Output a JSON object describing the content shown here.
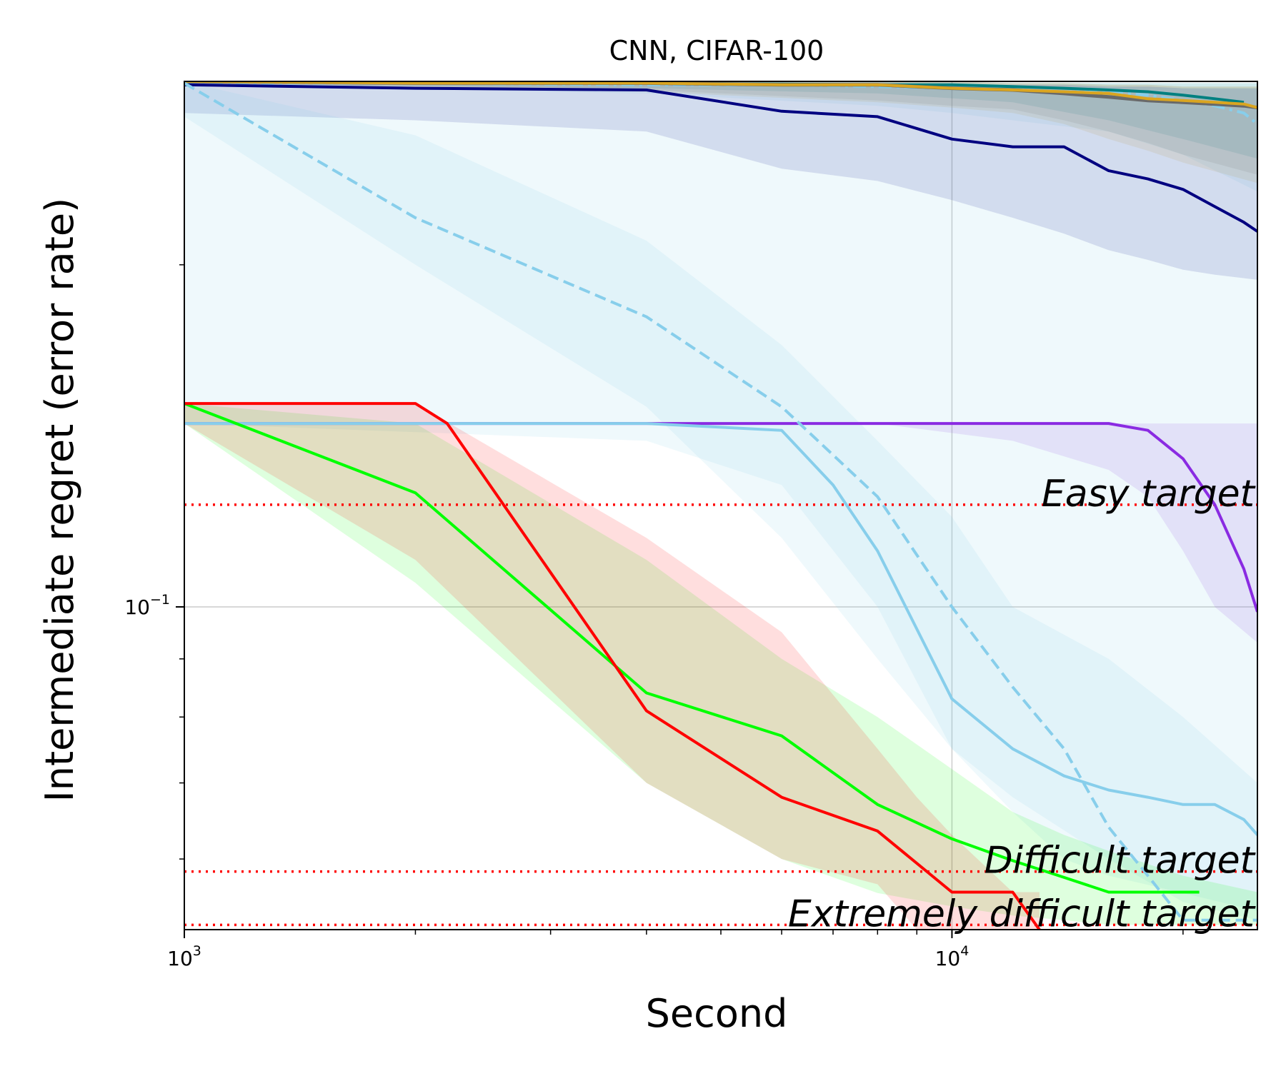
{
  "chart_data": {
    "type": "line",
    "title": "CNN, CIFAR-100",
    "xlabel": "Second",
    "ylabel": "Intermediate regret (error rate)",
    "xscale": "log",
    "yscale": "log",
    "xlim": [
      1000,
      25000
    ],
    "ylim": [
      0.052,
      0.29
    ],
    "xticks": [
      {
        "value": 1000,
        "base": "10",
        "exp": "3"
      },
      {
        "value": 10000,
        "base": "10",
        "exp": "4"
      }
    ],
    "yticks": [
      {
        "value": 0.1,
        "base": "10",
        "exp": "−1"
      }
    ],
    "grid": true,
    "targets": [
      {
        "label": "Easy target",
        "value": 0.123,
        "color": "#ff0000"
      },
      {
        "label": "Difficult target",
        "value": 0.0585,
        "color": "#ff0000"
      },
      {
        "label": "Extremely difficult target",
        "value": 0.0525,
        "color": "#ff0000"
      }
    ],
    "series": [
      {
        "name": "light-blue-dashdot",
        "color": "#87ceeb",
        "style": "dashdot",
        "width": 4,
        "x": [
          1000,
          2000,
          4000,
          6000,
          8000,
          10000,
          12000,
          14000,
          16000,
          18000,
          20000,
          22000,
          24000,
          25000
        ],
        "y": [
          0.289,
          0.289,
          0.288,
          0.288,
          0.287,
          0.286,
          0.285,
          0.284,
          0.284,
          0.282,
          0.279,
          0.276,
          0.272,
          0.266
        ],
        "band": {
          "x": [
            1000,
            4000,
            8000,
            10000,
            12000,
            16000,
            20000,
            25000
          ],
          "lo": [
            0.288,
            0.283,
            0.276,
            0.272,
            0.268,
            0.262,
            0.25,
            0.232
          ],
          "hi": [
            0.29,
            0.29,
            0.29,
            0.29,
            0.289,
            0.289,
            0.289,
            0.289
          ]
        }
      },
      {
        "name": "teal",
        "color": "#008080",
        "style": "solid",
        "width": 4,
        "x": [
          1000,
          4000,
          8000,
          10000,
          12000,
          14000,
          16000,
          18000,
          20000,
          22000,
          24000
        ],
        "y": [
          0.29,
          0.289,
          0.288,
          0.288,
          0.287,
          0.286,
          0.285,
          0.284,
          0.282,
          0.28,
          0.278
        ],
        "band": {
          "x": [
            1000,
            4000,
            8000,
            12000,
            16000,
            20000,
            25000
          ],
          "lo": [
            0.289,
            0.286,
            0.283,
            0.278,
            0.268,
            0.258,
            0.248
          ],
          "hi": [
            0.29,
            0.29,
            0.29,
            0.289,
            0.289,
            0.289,
            0.289
          ]
        }
      },
      {
        "name": "gray",
        "color": "#696969",
        "style": "solid",
        "width": 5,
        "x": [
          1000,
          2000,
          4000,
          6000,
          8000,
          10000,
          12000,
          14000,
          16000,
          18000,
          20000,
          22000,
          24000,
          25000
        ],
        "y": [
          0.29,
          0.289,
          0.289,
          0.288,
          0.288,
          0.286,
          0.285,
          0.283,
          0.281,
          0.279,
          0.278,
          0.277,
          0.276,
          0.275
        ],
        "band": {
          "x": [
            1000,
            4000,
            8000,
            10000,
            12000,
            14000,
            16000,
            18000,
            20000,
            25000
          ],
          "lo": [
            0.289,
            0.285,
            0.279,
            0.276,
            0.274,
            0.268,
            0.262,
            0.256,
            0.25,
            0.24
          ],
          "hi": [
            0.29,
            0.29,
            0.29,
            0.29,
            0.289,
            0.289,
            0.288,
            0.288,
            0.287,
            0.287
          ]
        }
      },
      {
        "name": "goldenrod",
        "color": "#daa520",
        "style": "solid",
        "width": 4,
        "x": [
          1000,
          2000,
          4000,
          6000,
          8000,
          10000,
          12000,
          14000,
          16000,
          18000,
          20000,
          22000,
          24000,
          25000
        ],
        "y": [
          0.29,
          0.289,
          0.289,
          0.288,
          0.288,
          0.286,
          0.285,
          0.284,
          0.283,
          0.28,
          0.279,
          0.278,
          0.277,
          0.275
        ],
        "band": {
          "x": [
            1000,
            4000,
            8000,
            10000,
            12000,
            14000,
            16000,
            18000,
            20000,
            25000
          ],
          "lo": [
            0.288,
            0.284,
            0.278,
            0.275,
            0.272,
            0.266,
            0.258,
            0.252,
            0.246,
            0.236
          ],
          "hi": [
            0.29,
            0.29,
            0.29,
            0.29,
            0.289,
            0.289,
            0.288,
            0.288,
            0.287,
            0.287
          ]
        }
      },
      {
        "name": "navy",
        "color": "#000080",
        "style": "solid",
        "width": 4,
        "x": [
          1000,
          2000,
          4000,
          6000,
          8000,
          10000,
          12000,
          14000,
          16000,
          18000,
          20000,
          22000,
          24000,
          25000
        ],
        "y": [
          0.288,
          0.286,
          0.285,
          0.273,
          0.27,
          0.258,
          0.254,
          0.254,
          0.242,
          0.238,
          0.233,
          0.225,
          0.218,
          0.214
        ],
        "band": {
          "x": [
            1000,
            2000,
            4000,
            6000,
            8000,
            10000,
            12000,
            14000,
            16000,
            18000,
            20000,
            22000,
            25000
          ],
          "lo": [
            0.272,
            0.268,
            0.262,
            0.243,
            0.237,
            0.228,
            0.22,
            0.213,
            0.206,
            0.202,
            0.198,
            0.196,
            0.194
          ],
          "hi": [
            0.29,
            0.29,
            0.289,
            0.289,
            0.289,
            0.288,
            0.288,
            0.288,
            0.287,
            0.287,
            0.286,
            0.286,
            0.286
          ]
        }
      },
      {
        "name": "blueviolet",
        "color": "#8a2be2",
        "style": "solid",
        "width": 4,
        "x": [
          1000,
          2000,
          4000,
          6000,
          8000,
          10000,
          12000,
          14000,
          16000,
          18000,
          20000,
          22000,
          24000,
          25000
        ],
        "y": [
          0.145,
          0.145,
          0.145,
          0.145,
          0.145,
          0.145,
          0.145,
          0.145,
          0.145,
          0.143,
          0.135,
          0.123,
          0.108,
          0.099
        ],
        "band": {
          "x": [
            1000,
            4000,
            8000,
            12000,
            16000,
            18000,
            20000,
            22000,
            25000
          ],
          "lo": [
            0.145,
            0.145,
            0.145,
            0.14,
            0.132,
            0.125,
            0.112,
            0.1,
            0.093
          ],
          "hi": [
            0.145,
            0.145,
            0.145,
            0.145,
            0.145,
            0.145,
            0.145,
            0.145,
            0.145
          ]
        }
      },
      {
        "name": "skyblue",
        "color": "#87ceeb",
        "style": "solid",
        "width": 4,
        "x": [
          1000,
          2000,
          4000,
          6000,
          7000,
          8000,
          10000,
          12000,
          14000,
          16000,
          18000,
          20000,
          22000,
          24000,
          25000
        ],
        "y": [
          0.145,
          0.145,
          0.145,
          0.143,
          0.128,
          0.112,
          0.083,
          0.075,
          0.071,
          0.069,
          0.068,
          0.067,
          0.067,
          0.065,
          0.063
        ],
        "band": {
          "x": [
            1000,
            4000,
            6000,
            8000,
            10000,
            12000,
            14000,
            16000,
            20000,
            25000
          ],
          "lo": [
            0.145,
            0.14,
            0.128,
            0.1,
            0.075,
            0.066,
            0.06,
            0.058,
            0.056,
            0.054
          ],
          "hi": [
            0.29,
            0.29,
            0.289,
            0.289,
            0.288,
            0.288,
            0.287,
            0.287,
            0.286,
            0.286
          ]
        }
      },
      {
        "name": "light-blue-dashed",
        "color": "#87ceeb",
        "style": "dashed",
        "width": 4,
        "x": [
          1000,
          2000,
          4000,
          6000,
          8000,
          10000,
          12000,
          14000,
          16000,
          18000,
          20000,
          22000,
          25000
        ],
        "y": [
          0.289,
          0.22,
          0.18,
          0.15,
          0.125,
          0.1,
          0.085,
          0.075,
          0.064,
          0.058,
          0.053,
          0.053,
          0.053
        ],
        "band": {
          "x": [
            1000,
            2000,
            4000,
            6000,
            8000,
            10000,
            12000,
            16000,
            20000,
            25000
          ],
          "lo": [
            0.27,
            0.2,
            0.15,
            0.115,
            0.09,
            0.075,
            0.068,
            0.06,
            0.055,
            0.053
          ],
          "hi": [
            0.29,
            0.26,
            0.21,
            0.17,
            0.14,
            0.12,
            0.1,
            0.09,
            0.08,
            0.07
          ]
        }
      },
      {
        "name": "lime",
        "color": "#00ff00",
        "style": "solid",
        "width": 4,
        "x": [
          1000,
          2000,
          4000,
          6000,
          8000,
          10000,
          12000,
          14000,
          16000,
          18000,
          20000,
          21000
        ],
        "y": [
          0.151,
          0.126,
          0.084,
          0.077,
          0.067,
          0.0625,
          0.0598,
          0.0578,
          0.0561,
          0.0561,
          0.0561,
          0.0561
        ],
        "band": {
          "x": [
            1000,
            2000,
            4000,
            6000,
            8000,
            10000,
            12000,
            14000,
            16000,
            20000,
            25000
          ],
          "lo": [
            0.145,
            0.105,
            0.07,
            0.06,
            0.056,
            0.0545,
            0.0535,
            0.053,
            0.0525,
            0.0525,
            0.0525
          ],
          "hi": [
            0.151,
            0.145,
            0.11,
            0.09,
            0.08,
            0.072,
            0.066,
            0.063,
            0.061,
            0.058,
            0.0561
          ]
        }
      },
      {
        "name": "red",
        "color": "#ff0000",
        "style": "solid",
        "width": 4,
        "x": [
          1000,
          2000,
          2200,
          4000,
          6000,
          8000,
          10000,
          12000,
          13000
        ],
        "y": [
          0.151,
          0.151,
          0.145,
          0.081,
          0.068,
          0.0635,
          0.0561,
          0.0561,
          0.052
        ],
        "band": {
          "x": [
            1000,
            2000,
            4000,
            6000,
            8000,
            9000,
            10000,
            12000,
            13000
          ],
          "lo": [
            0.145,
            0.11,
            0.07,
            0.06,
            0.057,
            0.052,
            0.052,
            0.052,
            0.052
          ],
          "hi": [
            0.151,
            0.151,
            0.115,
            0.095,
            0.075,
            0.068,
            0.063,
            0.0561,
            0.0561
          ]
        }
      }
    ]
  }
}
